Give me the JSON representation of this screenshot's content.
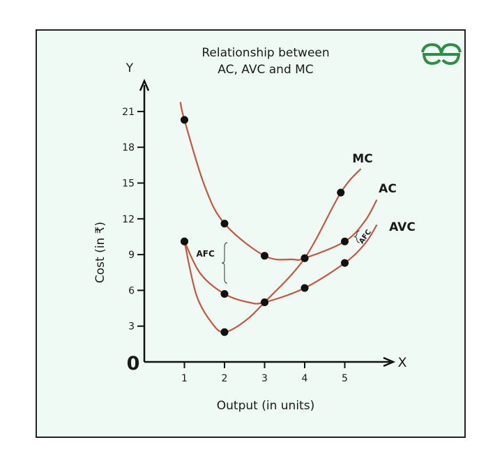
{
  "title_line1": "Relationship between",
  "title_line2": "AC, AVC and MC",
  "logo_text": "GG",
  "colors": {
    "curve": "#c9553f",
    "background": "#eefaf3",
    "logo": "#2f8d46",
    "axis": "#111111"
  },
  "chart_data": {
    "type": "line",
    "title": "Relationship between AC, AVC and MC",
    "xlabel": "Output (in units)",
    "ylabel": "Cost (in ₹)",
    "x_axis_letter": "X",
    "y_axis_letter": "Y",
    "origin_label": "0",
    "xlim": [
      0,
      6
    ],
    "ylim": [
      0,
      23
    ],
    "x_ticks": [
      "1",
      "2",
      "3",
      "4",
      "5"
    ],
    "y_ticks": [
      "3",
      "6",
      "9",
      "12",
      "15",
      "18",
      "21"
    ],
    "grid": false,
    "series": [
      {
        "name": "AC",
        "points": [
          [
            1,
            20.3
          ],
          [
            2,
            11.6
          ],
          [
            3,
            8.9
          ],
          [
            4,
            8.7
          ],
          [
            5,
            10.1
          ]
        ],
        "curve": [
          [
            0.9,
            21.8
          ],
          [
            1,
            20.3
          ],
          [
            1.5,
            14.8
          ],
          [
            2,
            11.6
          ],
          [
            3,
            8.9
          ],
          [
            3.7,
            8.6
          ],
          [
            4,
            8.7
          ],
          [
            5,
            10.1
          ],
          [
            5.5,
            11.8
          ],
          [
            5.8,
            13.6
          ]
        ]
      },
      {
        "name": "AVC",
        "points": [
          [
            1,
            10.1
          ],
          [
            2,
            5.7
          ],
          [
            3,
            5.0
          ],
          [
            4,
            6.2
          ],
          [
            5,
            8.3
          ]
        ],
        "curve": [
          [
            1,
            10.1
          ],
          [
            1.4,
            7.4
          ],
          [
            2,
            5.7
          ],
          [
            2.6,
            5.0
          ],
          [
            3,
            5.0
          ],
          [
            4,
            6.2
          ],
          [
            5,
            8.3
          ],
          [
            5.5,
            9.9
          ],
          [
            5.8,
            11.5
          ]
        ]
      },
      {
        "name": "MC",
        "points": [
          [
            1,
            10.1
          ],
          [
            2,
            2.5
          ],
          [
            3,
            5.0
          ],
          [
            4,
            8.7
          ],
          [
            4.9,
            14.2
          ]
        ],
        "curve": [
          [
            1,
            10.1
          ],
          [
            1.3,
            5.6
          ],
          [
            1.7,
            3.2
          ],
          [
            2,
            2.5
          ],
          [
            2.5,
            3.4
          ],
          [
            3,
            5.0
          ],
          [
            4,
            8.7
          ],
          [
            4.9,
            14.2
          ],
          [
            5.4,
            16.2
          ]
        ]
      }
    ],
    "annotations": [
      {
        "text": "AFC",
        "x": 1.35,
        "y": 9,
        "brace_x": 2.0,
        "brace_from": 10.0,
        "brace_to": 6.6
      },
      {
        "text": "AFC",
        "x": 5.55,
        "y": 10.4,
        "brace_x": 5.3,
        "brace_from": 11.0,
        "brace_to": 10.0,
        "rotated": true
      }
    ]
  }
}
